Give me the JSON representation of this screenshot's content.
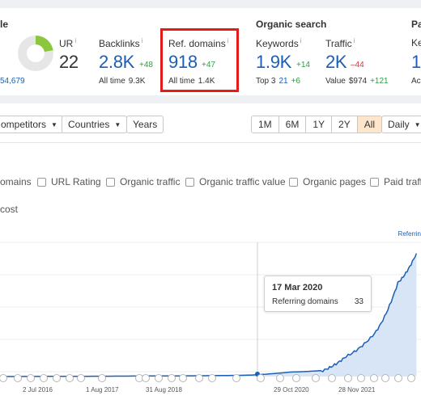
{
  "metrics": {
    "left_section_fragment": "le",
    "left_footer_fragment": "54,679",
    "ur": {
      "label": "UR",
      "info": "i",
      "value": "22"
    },
    "backlinks": {
      "label": "Backlinks",
      "info": "i",
      "value": "2.8K",
      "delta": "+48",
      "sub_label": "All time",
      "sub_value": "9.3K"
    },
    "ref_domains": {
      "label": "Ref. domains",
      "info": "i",
      "value": "918",
      "delta": "+47",
      "sub_label": "All time",
      "sub_value": "1.4K"
    },
    "organic_title": "Organic search",
    "keywords": {
      "label": "Keywords",
      "info": "i",
      "value": "1.9K",
      "delta": "+14",
      "sub_label": "Top 3",
      "sub_value": "21",
      "sub_delta": "+6"
    },
    "traffic": {
      "label": "Traffic",
      "info": "i",
      "value": "2K",
      "delta": "–44",
      "sub_label": "Value",
      "sub_value": "$974",
      "sub_delta": "+121"
    },
    "right_title_fragment": "Pa",
    "right_label_fragment": "Ke",
    "right_value_fragment": "1",
    "right_sub_fragment": "Ac",
    "highlight_color": "#e21b1b"
  },
  "toolbar": {
    "competitors": "ompetitors",
    "countries": "Countries",
    "years": "Years",
    "ranges": [
      "1M",
      "6M",
      "1Y",
      "2Y",
      "All"
    ],
    "active_range": "All",
    "interval": "Daily"
  },
  "filters": {
    "first_fragment": "omains",
    "items": [
      "URL Rating",
      "Organic traffic",
      "Organic traffic value",
      "Organic pages",
      "Paid traff"
    ],
    "cost_fragment": "cost"
  },
  "chart_data": {
    "type": "area",
    "series": [
      {
        "name": "Referring domains",
        "x": [
          "2015-01",
          "2016-07",
          "2017-08",
          "2018-08",
          "2019-06",
          "2020-03",
          "2020-10",
          "2021-03",
          "2021-09",
          "2022-02",
          "2022-06"
        ],
        "values": [
          0,
          2,
          4,
          6,
          10,
          33,
          45,
          150,
          320,
          700,
          918
        ]
      }
    ],
    "x_tick_labels": [
      "2 Jul 2016",
      "1 Aug 2017",
      "31 Aug 2018",
      "29 Oct 2020",
      "28 Nov 2021"
    ],
    "legend_fragment": "Referrin",
    "tooltip": {
      "date": "17 Mar 2020",
      "label": "Referring domains",
      "value": "33"
    },
    "line_color": "#1b5fb6",
    "fill_color": "#d7e5f6"
  }
}
